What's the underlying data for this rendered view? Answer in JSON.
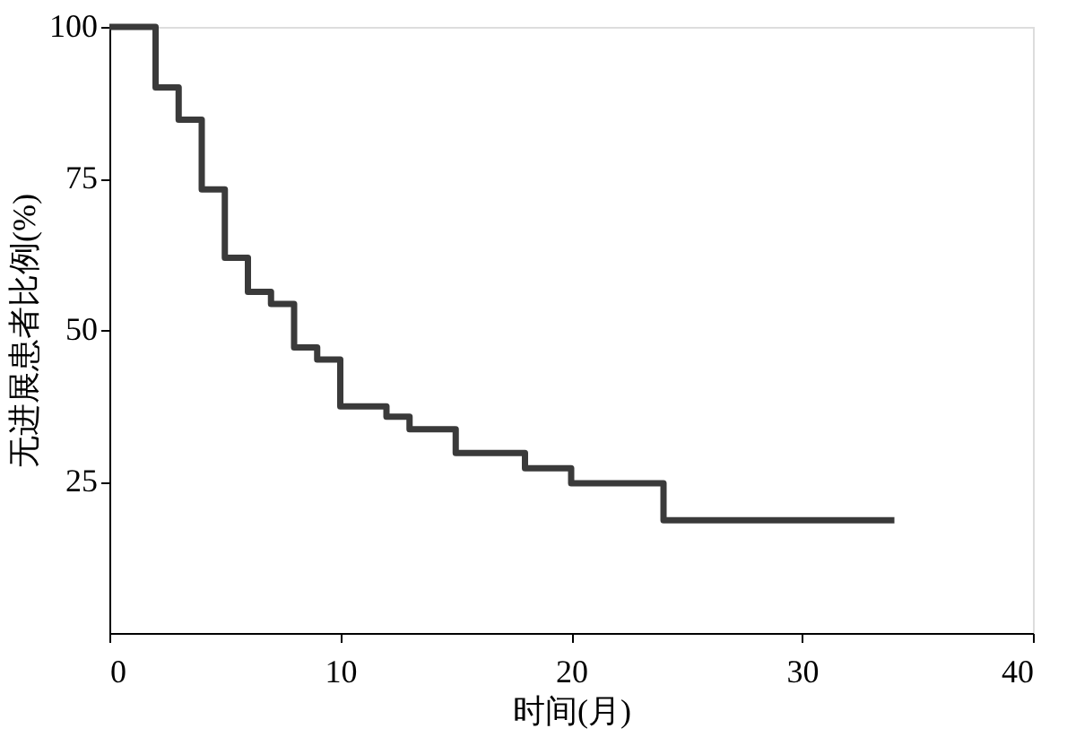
{
  "chart_data": {
    "type": "step",
    "xlabel": "时间(月)",
    "ylabel": "无进展患者比例(%)",
    "x": [
      0,
      2,
      3,
      4,
      5,
      6,
      7,
      8,
      9,
      10,
      12,
      13,
      15,
      18,
      20,
      24,
      34
    ],
    "series": [
      {
        "color": "#3a3a3a",
        "values": [
          100,
          90,
          84.7,
          73.2,
          61.9,
          56.3,
          54.3,
          47.1,
          45.1,
          37.4,
          35.7,
          33.6,
          29.7,
          27.2,
          24.7,
          18.6,
          18.6
        ]
      }
    ],
    "xlim": [
      0,
      40
    ],
    "xticks": [
      0,
      10,
      20,
      30,
      40
    ],
    "ylim": [
      0,
      100
    ],
    "yticks": [
      25,
      50,
      75,
      100
    ]
  }
}
